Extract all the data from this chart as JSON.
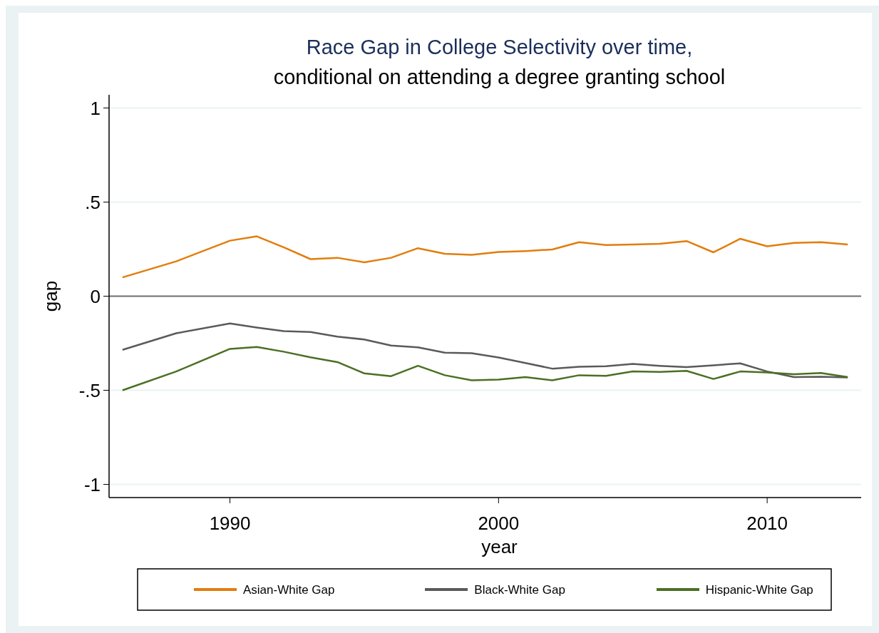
{
  "chart_data": {
    "type": "line",
    "title": "Race Gap in College Selectivity over time,",
    "subtitle": "conditional on attending a degree granting school",
    "xlabel": "year",
    "ylabel": "gap",
    "x": [
      1986,
      1988,
      1990,
      1991,
      1992,
      1993,
      1994,
      1995,
      1996,
      1997,
      1998,
      1999,
      2000,
      2001,
      2002,
      2003,
      2004,
      2005,
      2006,
      2007,
      2008,
      2009,
      2010,
      2011,
      2012,
      2013
    ],
    "series": [
      {
        "name": "Asian-White Gap",
        "color": "#e27d0c",
        "values": [
          0.1,
          0.185,
          0.295,
          0.318,
          0.26,
          0.197,
          0.204,
          0.18,
          0.204,
          0.255,
          0.225,
          0.22,
          0.235,
          0.24,
          0.248,
          0.287,
          0.272,
          0.275,
          0.278,
          0.293,
          0.233,
          0.305,
          0.265,
          0.283,
          0.287,
          0.275
        ]
      },
      {
        "name": "Black-White Gap",
        "color": "#5a5a5a",
        "values": [
          -0.285,
          -0.197,
          -0.145,
          -0.167,
          -0.186,
          -0.19,
          -0.215,
          -0.23,
          -0.262,
          -0.272,
          -0.3,
          -0.303,
          -0.326,
          -0.355,
          -0.385,
          -0.375,
          -0.372,
          -0.36,
          -0.37,
          -0.377,
          -0.367,
          -0.357,
          -0.4,
          -0.43,
          -0.428,
          -0.432
        ]
      },
      {
        "name": "Hispanic-White Gap",
        "color": "#4a7023",
        "values": [
          -0.5,
          -0.4,
          -0.28,
          -0.27,
          -0.295,
          -0.325,
          -0.35,
          -0.41,
          -0.425,
          -0.37,
          -0.42,
          -0.447,
          -0.443,
          -0.43,
          -0.447,
          -0.42,
          -0.423,
          -0.4,
          -0.402,
          -0.397,
          -0.44,
          -0.4,
          -0.405,
          -0.415,
          -0.408,
          -0.43
        ]
      }
    ],
    "xlim": [
      1985.5,
      2013.5
    ],
    "xticks": [
      1990,
      2000,
      2010
    ],
    "ylim": [
      -1.07,
      1.07
    ],
    "yticks": [
      {
        "value": -1,
        "label": "-1"
      },
      {
        "value": -0.5,
        "label": "-.5"
      },
      0,
      {
        "value": 0.5,
        "label": ".5"
      },
      1
    ],
    "ref_lines": [
      {
        "axis": "y",
        "value": 0,
        "color": "#707070"
      }
    ],
    "grid": "y",
    "legend": "bottom",
    "marker": "none",
    "line_style": "solid"
  }
}
